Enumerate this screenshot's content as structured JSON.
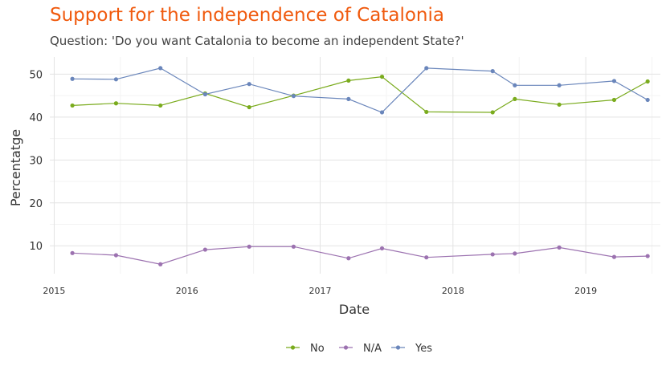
{
  "chart_data": {
    "type": "line",
    "title": "Support for the independence of Catalonia",
    "subtitle": "Question: 'Do you want Catalonia to become an independent State?'",
    "xlabel": "Date",
    "ylabel": "Percentatge",
    "x_type": "date",
    "xlim": [
      "2014-12-20",
      "2019-07-25"
    ],
    "ylim": [
      3.5,
      54
    ],
    "x_ticks": [
      "2015-01-01",
      "2016-01-01",
      "2017-01-01",
      "2018-01-01",
      "2019-01-01"
    ],
    "x_tick_labels": [
      "2015",
      "2016",
      "2017",
      "2018",
      "2019"
    ],
    "y_ticks": [
      10,
      20,
      30,
      40,
      50
    ],
    "y_tick_labels": [
      "10",
      "20",
      "30",
      "40",
      "50"
    ],
    "grid": true,
    "legend_position": "bottom",
    "x": [
      "2015-02-20",
      "2015-06-20",
      "2015-10-20",
      "2016-02-20",
      "2016-06-20",
      "2016-10-20",
      "2017-03-20",
      "2017-06-20",
      "2017-10-20",
      "2018-04-20",
      "2018-06-20",
      "2018-10-20",
      "2019-03-20",
      "2019-06-20"
    ],
    "series": [
      {
        "name": "No",
        "color": "#7aab1d",
        "values": [
          42.7,
          43.2,
          42.7,
          45.5,
          42.3,
          45.0,
          48.5,
          49.4,
          41.2,
          41.1,
          44.2,
          42.9,
          44.0,
          48.3
        ]
      },
      {
        "name": "N/A",
        "color": "#9c72b0",
        "values": [
          8.3,
          7.8,
          5.7,
          9.1,
          9.8,
          9.8,
          7.1,
          9.4,
          7.3,
          8.0,
          8.2,
          9.6,
          7.4,
          7.6
        ]
      },
      {
        "name": "Yes",
        "color": "#6a86bb",
        "values": [
          48.9,
          48.8,
          51.4,
          45.3,
          47.7,
          44.9,
          44.2,
          41.1,
          51.4,
          50.7,
          47.4,
          47.4,
          48.4,
          44.0
        ]
      }
    ]
  }
}
